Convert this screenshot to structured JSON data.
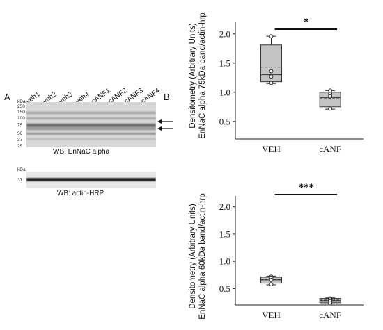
{
  "panel_a": {
    "letter": "A",
    "lanes": [
      "veh1",
      "veh2",
      "veh3",
      "veh4",
      "cANF1",
      "cANF2",
      "cANF3",
      "cANF4"
    ],
    "blot1": {
      "kda_label": "kDa",
      "markers": [
        "250",
        "150",
        "100",
        "75",
        "50",
        "37",
        "25"
      ],
      "caption": "WB:  EnNaC alpha",
      "arrows": [
        "upper-band-arrow",
        "lower-band-arrow"
      ]
    },
    "blot2": {
      "kda_label": "kDa",
      "markers": [
        "37"
      ],
      "caption": "WB:  actin-HRP"
    }
  },
  "panel_b": {
    "letter": "B"
  },
  "chart_data": [
    {
      "type": "box",
      "ylabel_line1": "Densitometry (Arbitrary Units)",
      "ylabel_line2": "EnNaC alpha 75kDa band/actin-hrp",
      "categories": [
        "VEH",
        "cANF"
      ],
      "ylim": [
        0.2,
        2.2
      ],
      "yticks": [
        "0.5",
        "1.0",
        "1.5",
        "2.0"
      ],
      "ytick_values": [
        0.5,
        1.0,
        1.5,
        2.0
      ],
      "significance": "*",
      "boxes": [
        {
          "name": "VEH",
          "whisker_low": 1.15,
          "q1": 1.18,
          "median": 1.3,
          "mean": 1.43,
          "q3": 1.81,
          "whisker_high": 1.96,
          "points": [
            1.96,
            1.36,
            1.27,
            1.16
          ]
        },
        {
          "name": "cANF",
          "whisker_low": 0.71,
          "q1": 0.75,
          "median": 0.91,
          "mean": 0.89,
          "q3": 1.0,
          "whisker_high": 1.03,
          "points": [
            1.03,
            0.97,
            0.93,
            0.72
          ]
        }
      ]
    },
    {
      "type": "box",
      "ylabel_line1": "Densitometry (Arbitrary Units)",
      "ylabel_line2": "EnNaC alpha 60kDa band/actin-hrp",
      "categories": [
        "VEH",
        "cANF"
      ],
      "ylim": [
        0.2,
        2.2
      ],
      "yticks": [
        "0.5",
        "1.0",
        "1.5",
        "2.0"
      ],
      "ytick_values": [
        0.5,
        1.0,
        1.5,
        2.0
      ],
      "significance": "***",
      "boxes": [
        {
          "name": "VEH",
          "whisker_low": 0.57,
          "q1": 0.6,
          "median": 0.66,
          "mean": 0.67,
          "q3": 0.71,
          "whisker_high": 0.73,
          "points": [
            0.72,
            0.7,
            0.66,
            0.58
          ]
        },
        {
          "name": "cANF",
          "whisker_low": 0.22,
          "q1": 0.24,
          "median": 0.28,
          "mean": 0.29,
          "q3": 0.32,
          "whisker_high": 0.33,
          "points": [
            0.32,
            0.3,
            0.27,
            0.23
          ]
        }
      ]
    }
  ]
}
